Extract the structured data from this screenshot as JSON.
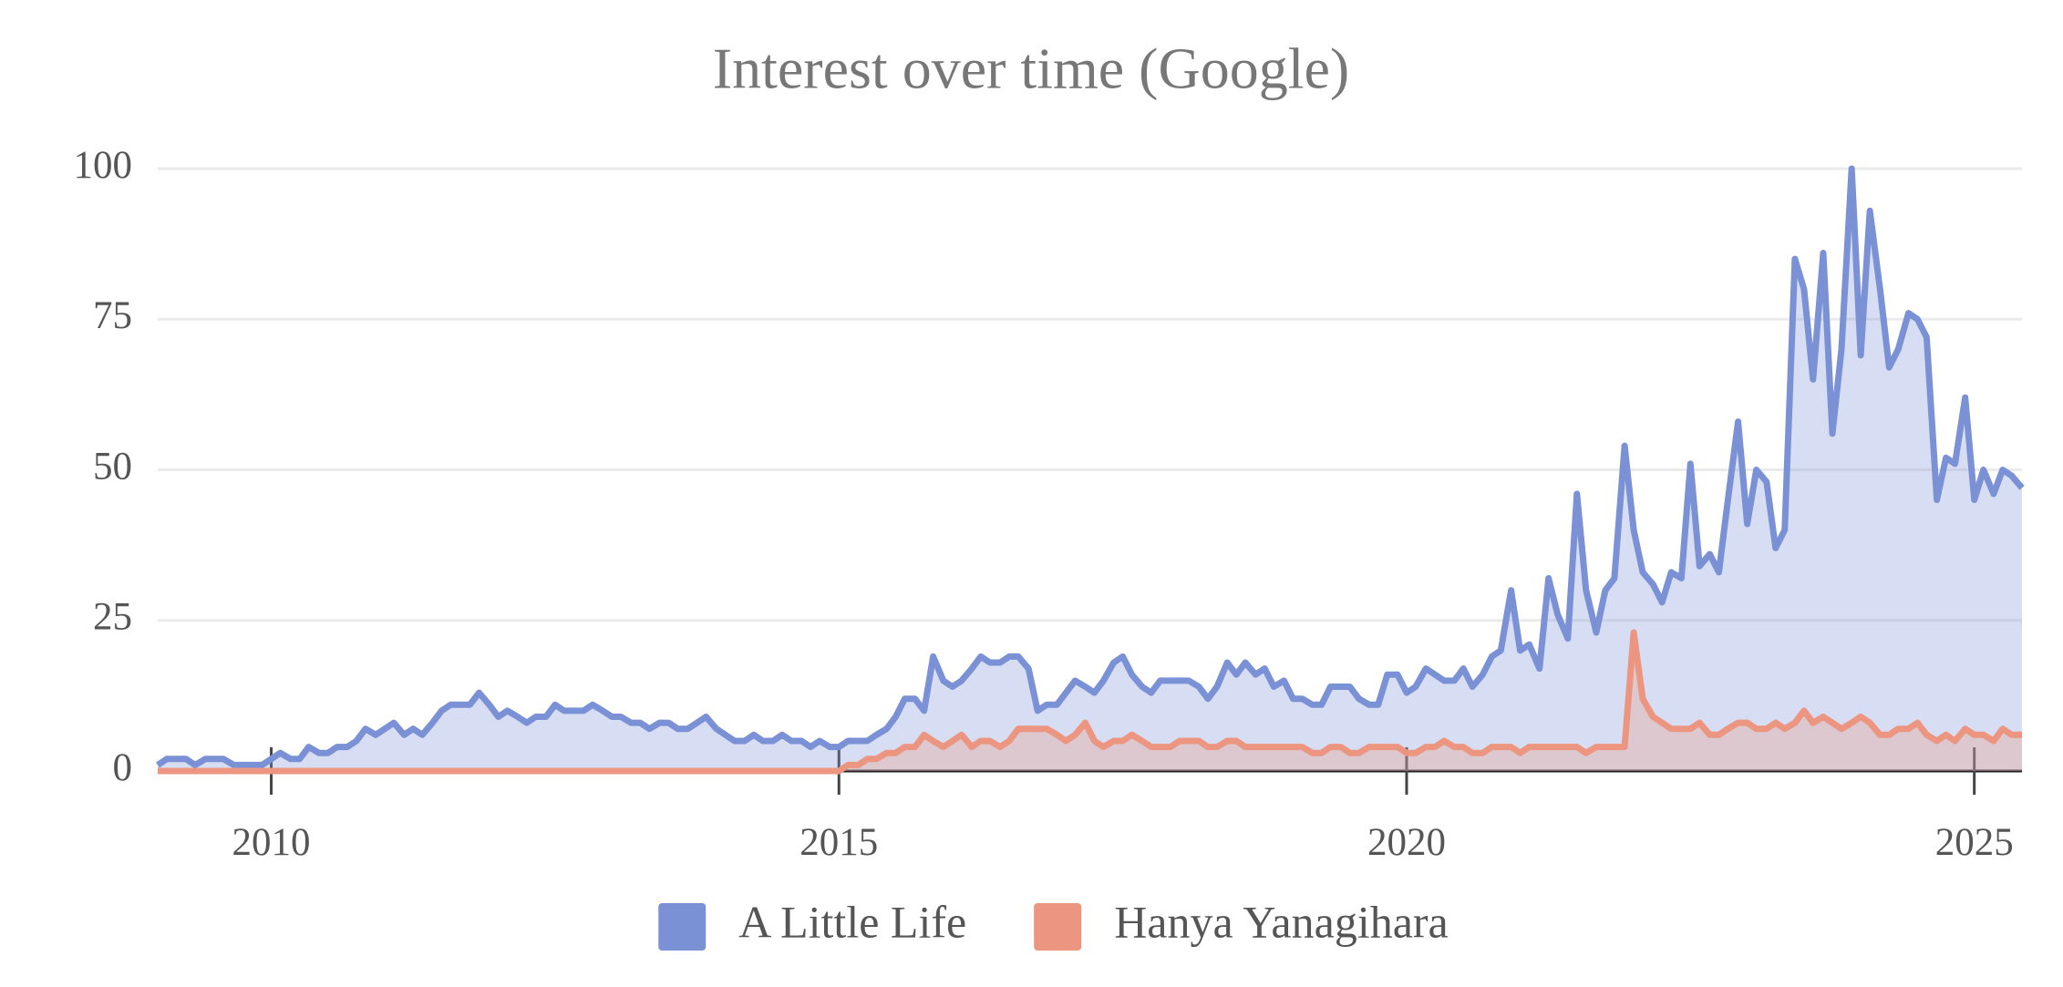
{
  "chart_data": {
    "type": "area",
    "title": "Interest over time (Google)",
    "x": [
      2009,
      2009.08,
      2009.17,
      2009.25,
      2009.33,
      2009.42,
      2009.5,
      2009.58,
      2009.67,
      2009.75,
      2009.83,
      2009.92,
      2010,
      2010.08,
      2010.17,
      2010.25,
      2010.33,
      2010.42,
      2010.5,
      2010.58,
      2010.67,
      2010.75,
      2010.83,
      2010.92,
      2011,
      2011.08,
      2011.17,
      2011.25,
      2011.33,
      2011.42,
      2011.5,
      2011.58,
      2011.67,
      2011.75,
      2011.83,
      2011.92,
      2012,
      2012.08,
      2012.17,
      2012.25,
      2012.33,
      2012.42,
      2012.5,
      2012.58,
      2012.67,
      2012.75,
      2012.83,
      2012.92,
      2013,
      2013.08,
      2013.17,
      2013.25,
      2013.33,
      2013.42,
      2013.5,
      2013.58,
      2013.67,
      2013.75,
      2013.83,
      2013.92,
      2014,
      2014.08,
      2014.17,
      2014.25,
      2014.33,
      2014.42,
      2014.5,
      2014.58,
      2014.67,
      2014.75,
      2014.83,
      2014.92,
      2015,
      2015.08,
      2015.17,
      2015.25,
      2015.33,
      2015.42,
      2015.5,
      2015.58,
      2015.67,
      2015.75,
      2015.83,
      2015.92,
      2016,
      2016.08,
      2016.17,
      2016.25,
      2016.33,
      2016.42,
      2016.5,
      2016.58,
      2016.67,
      2016.75,
      2016.83,
      2016.92,
      2017,
      2017.08,
      2017.17,
      2017.25,
      2017.33,
      2017.42,
      2017.5,
      2017.58,
      2017.67,
      2017.75,
      2017.83,
      2017.92,
      2018,
      2018.08,
      2018.17,
      2018.25,
      2018.33,
      2018.42,
      2018.5,
      2018.58,
      2018.67,
      2018.75,
      2018.83,
      2018.92,
      2019,
      2019.08,
      2019.17,
      2019.25,
      2019.33,
      2019.42,
      2019.5,
      2019.58,
      2019.67,
      2019.75,
      2019.83,
      2019.92,
      2020,
      2020.08,
      2020.17,
      2020.25,
      2020.33,
      2020.42,
      2020.5,
      2020.58,
      2020.67,
      2020.75,
      2020.83,
      2020.92,
      2021,
      2021.08,
      2021.17,
      2021.25,
      2021.33,
      2021.42,
      2021.5,
      2021.58,
      2021.67,
      2021.75,
      2021.83,
      2021.92,
      2022,
      2022.08,
      2022.17,
      2022.25,
      2022.33,
      2022.42,
      2022.5,
      2022.58,
      2022.67,
      2022.75,
      2022.83,
      2022.92,
      2023,
      2023.08,
      2023.17,
      2023.25,
      2023.33,
      2023.42,
      2023.5,
      2023.58,
      2023.67,
      2023.75,
      2023.83,
      2023.92,
      2024,
      2024.08,
      2024.17,
      2024.25,
      2024.33,
      2024.42,
      2024.5,
      2024.58,
      2024.67,
      2024.75,
      2024.83,
      2024.92,
      2025,
      2025.08,
      2025.17,
      2025.25,
      2025.33,
      2025.42
    ],
    "series": [
      {
        "name": "A Little Life",
        "color": "#7b91d6",
        "values": [
          1,
          2,
          2,
          2,
          1,
          2,
          2,
          2,
          1,
          1,
          1,
          1,
          2,
          3,
          2,
          2,
          4,
          3,
          3,
          4,
          4,
          5,
          7,
          6,
          7,
          8,
          6,
          7,
          6,
          8,
          10,
          11,
          11,
          11,
          13,
          11,
          9,
          10,
          9,
          8,
          9,
          9,
          11,
          10,
          10,
          10,
          11,
          10,
          9,
          9,
          8,
          8,
          7,
          8,
          8,
          7,
          7,
          8,
          9,
          7,
          6,
          5,
          5,
          6,
          5,
          5,
          6,
          5,
          5,
          4,
          5,
          4,
          4,
          5,
          5,
          5,
          6,
          7,
          9,
          12,
          12,
          10,
          19,
          15,
          14,
          15,
          17,
          19,
          18,
          18,
          19,
          19,
          17,
          10,
          11,
          11,
          13,
          15,
          14,
          13,
          15,
          18,
          19,
          16,
          14,
          13,
          15,
          15,
          15,
          15,
          14,
          12,
          14,
          18,
          16,
          18,
          16,
          17,
          14,
          15,
          12,
          12,
          11,
          11,
          14,
          14,
          14,
          12,
          11,
          11,
          16,
          16,
          13,
          14,
          17,
          16,
          15,
          15,
          17,
          14,
          16,
          19,
          20,
          30,
          20,
          21,
          17,
          32,
          26,
          22,
          46,
          30,
          23,
          30,
          32,
          54,
          40,
          33,
          31,
          28,
          33,
          32,
          51,
          34,
          36,
          33,
          45,
          58,
          41,
          50,
          48,
          37,
          40,
          85,
          80,
          65,
          86,
          56,
          70,
          100,
          69,
          93,
          80,
          67,
          70,
          76,
          75,
          72,
          45,
          52,
          51,
          62,
          45,
          50,
          46,
          50,
          49,
          47
        ]
      },
      {
        "name": "Hanya Yanagihara",
        "color": "#ec9580",
        "values": [
          0,
          0,
          0,
          0,
          0,
          0,
          0,
          0,
          0,
          0,
          0,
          0,
          0,
          0,
          0,
          0,
          0,
          0,
          0,
          0,
          0,
          0,
          0,
          0,
          0,
          0,
          0,
          0,
          0,
          0,
          0,
          0,
          0,
          0,
          0,
          0,
          0,
          0,
          0,
          0,
          0,
          0,
          0,
          0,
          0,
          0,
          0,
          0,
          0,
          0,
          0,
          0,
          0,
          0,
          0,
          0,
          0,
          0,
          0,
          0,
          0,
          0,
          0,
          0,
          0,
          0,
          0,
          0,
          0,
          0,
          0,
          0,
          0,
          1,
          1,
          2,
          2,
          3,
          3,
          4,
          4,
          6,
          5,
          4,
          5,
          6,
          4,
          5,
          5,
          4,
          5,
          7,
          7,
          7,
          7,
          6,
          5,
          6,
          8,
          5,
          4,
          5,
          5,
          6,
          5,
          4,
          4,
          4,
          5,
          5,
          5,
          4,
          4,
          5,
          5,
          4,
          4,
          4,
          4,
          4,
          4,
          4,
          3,
          3,
          4,
          4,
          3,
          3,
          4,
          4,
          4,
          4,
          3,
          3,
          4,
          4,
          5,
          4,
          4,
          3,
          3,
          4,
          4,
          4,
          3,
          4,
          4,
          4,
          4,
          4,
          4,
          3,
          4,
          4,
          4,
          4,
          23,
          12,
          9,
          8,
          7,
          7,
          7,
          8,
          6,
          6,
          7,
          8,
          8,
          7,
          7,
          8,
          7,
          8,
          10,
          8,
          9,
          8,
          7,
          8,
          9,
          8,
          6,
          6,
          7,
          7,
          8,
          6,
          5,
          6,
          5,
          7,
          6,
          6,
          5,
          7,
          6,
          6
        ]
      }
    ],
    "xlim": [
      2009,
      2025.42
    ],
    "xticks": [
      2010,
      2015,
      2020,
      2025
    ],
    "ylim": [
      0,
      100
    ],
    "yticks": [
      0,
      25,
      50,
      75,
      100
    ],
    "grid": true,
    "legend": "bottom"
  }
}
